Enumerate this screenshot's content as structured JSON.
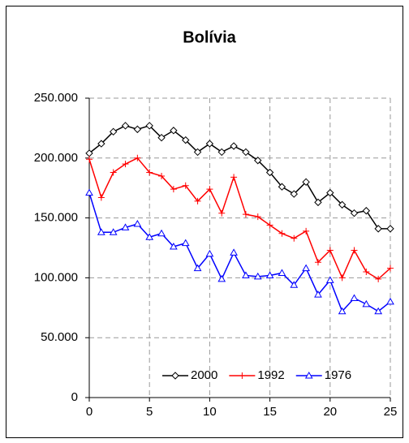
{
  "chart_data": {
    "type": "line",
    "title": "Bolívia",
    "x": [
      0,
      1,
      2,
      3,
      4,
      5,
      6,
      7,
      8,
      9,
      10,
      11,
      12,
      13,
      14,
      15,
      16,
      17,
      18,
      19,
      20,
      21,
      22,
      23,
      24,
      25
    ],
    "series": [
      {
        "name": "2000",
        "color": "#000000",
        "marker": "diamond",
        "values": [
          204000,
          212000,
          222000,
          227000,
          224000,
          227000,
          217000,
          223000,
          215000,
          205000,
          212000,
          205000,
          210000,
          205000,
          198000,
          188000,
          176000,
          170000,
          180000,
          163000,
          171000,
          161000,
          154000,
          156000,
          141000,
          141000
        ]
      },
      {
        "name": "1992",
        "color": "#ff0000",
        "marker": "plus",
        "values": [
          199000,
          167000,
          188000,
          195000,
          200000,
          188000,
          185000,
          174000,
          177000,
          164000,
          174000,
          154000,
          184000,
          153000,
          151000,
          144000,
          137000,
          133000,
          139000,
          113000,
          123000,
          100000,
          123000,
          105000,
          99000,
          108000
        ]
      },
      {
        "name": "1976",
        "color": "#0000ff",
        "marker": "triangle",
        "values": [
          171000,
          138000,
          138000,
          142000,
          145000,
          134000,
          137000,
          126000,
          129000,
          108000,
          120000,
          99000,
          121000,
          102000,
          101000,
          102000,
          104000,
          94000,
          108000,
          86000,
          98000,
          72000,
          83000,
          78000,
          72000,
          80000
        ]
      }
    ],
    "xlim": [
      0,
      25
    ],
    "xticks": [
      0,
      5,
      10,
      15,
      20,
      25
    ],
    "ylim": [
      0,
      250000
    ],
    "yticks": [
      0,
      {
        "value": 50000,
        "label": "50.000"
      },
      {
        "value": 100000,
        "label": "100.000"
      },
      {
        "value": 150000,
        "label": "150.000"
      },
      {
        "value": 200000,
        "label": "200.000"
      },
      {
        "value": 250000,
        "label": "250.000"
      }
    ],
    "grid": true,
    "legend": "bottom-right"
  }
}
